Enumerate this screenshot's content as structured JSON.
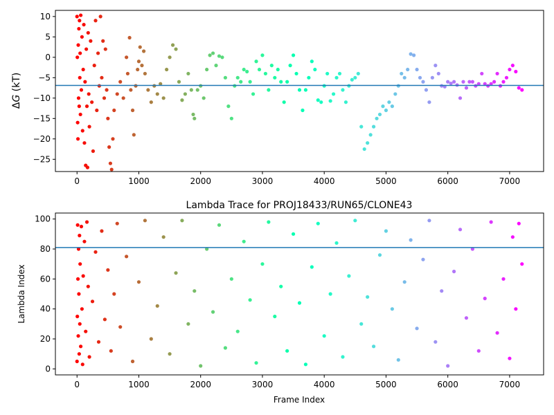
{
  "chart_data": [
    {
      "type": "scatter",
      "title": "",
      "xlabel": "",
      "ylabel_prefix": "Δ",
      "ylabel_symbol": "G",
      "ylabel_suffix": " (kT)",
      "xlim": [
        -350,
        7550
      ],
      "ylim": [
        -28,
        11.5
      ],
      "xticks": [
        0,
        1000,
        2000,
        3000,
        4000,
        5000,
        6000,
        7000
      ],
      "yticks": [
        10,
        5,
        0,
        -5,
        -10,
        -15,
        -20,
        -25
      ],
      "xtick_labels": [
        "0",
        "1000",
        "2000",
        "3000",
        "4000",
        "5000",
        "6000",
        "7000"
      ],
      "ytick_labels": [
        "10",
        "5",
        "0",
        "−5",
        "−10",
        "−15",
        "−20",
        "−25"
      ],
      "hline": {
        "y": -6.9,
        "color": "#1f77b4"
      },
      "colormap": "rainbow",
      "n_frames": 7200,
      "grid": false,
      "points": [
        [
          0,
          10
        ],
        [
          5,
          0
        ],
        [
          10,
          -16
        ],
        [
          15,
          -20
        ],
        [
          20,
          3
        ],
        [
          25,
          -10
        ],
        [
          30,
          7
        ],
        [
          35,
          -12
        ],
        [
          40,
          9
        ],
        [
          45,
          -5
        ],
        [
          50,
          1
        ],
        [
          55,
          -14
        ],
        [
          60,
          10.3
        ],
        [
          70,
          -8
        ],
        [
          80,
          5
        ],
        [
          90,
          -18
        ],
        [
          100,
          -3
        ],
        [
          110,
          8
        ],
        [
          120,
          -21
        ],
        [
          130,
          -6
        ],
        [
          140,
          -26.5
        ],
        [
          150,
          2
        ],
        [
          160,
          -12
        ],
        [
          170,
          -27
        ],
        [
          180,
          6
        ],
        [
          190,
          -9
        ],
        [
          200,
          -17
        ],
        [
          220,
          4
        ],
        [
          240,
          -11
        ],
        [
          260,
          -23
        ],
        [
          280,
          -2
        ],
        [
          300,
          9
        ],
        [
          320,
          -13
        ],
        [
          340,
          1
        ],
        [
          360,
          -7
        ],
        [
          380,
          10
        ],
        [
          400,
          -5
        ],
        [
          420,
          4
        ],
        [
          440,
          -10
        ],
        [
          460,
          2
        ],
        [
          480,
          -8
        ],
        [
          500,
          -15
        ],
        [
          520,
          -22
        ],
        [
          540,
          -26
        ],
        [
          560,
          -27.5
        ],
        [
          580,
          -20
        ],
        [
          600,
          -13
        ],
        [
          650,
          -9
        ],
        [
          700,
          -6
        ],
        [
          750,
          -10
        ],
        [
          800,
          0
        ],
        [
          820,
          -4
        ],
        [
          850,
          4.8
        ],
        [
          870,
          -8
        ],
        [
          900,
          -13
        ],
        [
          920,
          -19
        ],
        [
          950,
          -7
        ],
        [
          980,
          -3
        ],
        [
          1000,
          -1
        ],
        [
          1020,
          2.5
        ],
        [
          1050,
          -2
        ],
        [
          1080,
          1.5
        ],
        [
          1100,
          -4
        ],
        [
          1150,
          -8
        ],
        [
          1200,
          -11
        ],
        [
          1250,
          -7
        ],
        [
          1300,
          -9
        ],
        [
          1350,
          -6.5
        ],
        [
          1400,
          -10
        ],
        [
          1450,
          -3
        ],
        [
          1500,
          0
        ],
        [
          1550,
          3
        ],
        [
          1600,
          2
        ],
        [
          1650,
          -6
        ],
        [
          1700,
          -10.5
        ],
        [
          1750,
          -9
        ],
        [
          1800,
          -4
        ],
        [
          1850,
          -8
        ],
        [
          1880,
          -14
        ],
        [
          1900,
          -15
        ],
        [
          1950,
          -8
        ],
        [
          2000,
          -7
        ],
        [
          2050,
          -10
        ],
        [
          2100,
          -3
        ],
        [
          2150,
          0.5
        ],
        [
          2200,
          1
        ],
        [
          2250,
          -2
        ],
        [
          2300,
          0.3
        ],
        [
          2350,
          0
        ],
        [
          2400,
          -5
        ],
        [
          2450,
          -12
        ],
        [
          2500,
          -15
        ],
        [
          2550,
          -7
        ],
        [
          2600,
          -5
        ],
        [
          2650,
          -6
        ],
        [
          2700,
          -3
        ],
        [
          2750,
          -3.5
        ],
        [
          2800,
          -6
        ],
        [
          2850,
          -9
        ],
        [
          2900,
          -1
        ],
        [
          2950,
          -3
        ],
        [
          3000,
          0.5
        ],
        [
          3050,
          -4
        ],
        [
          3100,
          -8
        ],
        [
          3150,
          -2
        ],
        [
          3200,
          -5
        ],
        [
          3250,
          -3
        ],
        [
          3300,
          -6
        ],
        [
          3350,
          -11
        ],
        [
          3400,
          -6
        ],
        [
          3450,
          -2
        ],
        [
          3500,
          0.5
        ],
        [
          3550,
          -4
        ],
        [
          3600,
          -8
        ],
        [
          3650,
          -13
        ],
        [
          3700,
          -8
        ],
        [
          3750,
          -5
        ],
        [
          3800,
          -1
        ],
        [
          3850,
          -3
        ],
        [
          3900,
          -10.5
        ],
        [
          3950,
          -11
        ],
        [
          4000,
          -7
        ],
        [
          4050,
          -4
        ],
        [
          4100,
          -10.7
        ],
        [
          4150,
          -9
        ],
        [
          4200,
          -5
        ],
        [
          4250,
          -4
        ],
        [
          4300,
          -8
        ],
        [
          4350,
          -11
        ],
        [
          4400,
          -7
        ],
        [
          4450,
          -5.5
        ],
        [
          4500,
          -5
        ],
        [
          4550,
          -4
        ],
        [
          4600,
          -17
        ],
        [
          4650,
          -22.5
        ],
        [
          4700,
          -21
        ],
        [
          4750,
          -19
        ],
        [
          4800,
          -17
        ],
        [
          4850,
          -15
        ],
        [
          4900,
          -14
        ],
        [
          4950,
          -12
        ],
        [
          5000,
          -13
        ],
        [
          5050,
          -11
        ],
        [
          5100,
          -12
        ],
        [
          5150,
          -9
        ],
        [
          5200,
          -7
        ],
        [
          5250,
          -4
        ],
        [
          5300,
          -5
        ],
        [
          5350,
          -3
        ],
        [
          5400,
          0.8
        ],
        [
          5450,
          0.5
        ],
        [
          5500,
          -3
        ],
        [
          5550,
          -5
        ],
        [
          5600,
          -6
        ],
        [
          5650,
          -8
        ],
        [
          5700,
          -11
        ],
        [
          5750,
          -5
        ],
        [
          5800,
          -2
        ],
        [
          5850,
          -4
        ],
        [
          5900,
          -7
        ],
        [
          5950,
          -7.2
        ],
        [
          6000,
          -6
        ],
        [
          6050,
          -6.4
        ],
        [
          6100,
          -6
        ],
        [
          6150,
          -6.8
        ],
        [
          6200,
          -10
        ],
        [
          6250,
          -6
        ],
        [
          6300,
          -7.5
        ],
        [
          6350,
          -6
        ],
        [
          6400,
          -6
        ],
        [
          6450,
          -7
        ],
        [
          6500,
          -6.5
        ],
        [
          6550,
          -4
        ],
        [
          6600,
          -6.5
        ],
        [
          6650,
          -7
        ],
        [
          6700,
          -6.5
        ],
        [
          6750,
          -6
        ],
        [
          6800,
          -4
        ],
        [
          6850,
          -7
        ],
        [
          6900,
          -6
        ],
        [
          6950,
          -5
        ],
        [
          7000,
          -3
        ],
        [
          7050,
          -2
        ],
        [
          7100,
          -3.5
        ],
        [
          7150,
          -7.5
        ],
        [
          7200,
          -8
        ]
      ]
    },
    {
      "type": "scatter",
      "title": "Lambda Trace for PROJ18433/RUN65/CLONE43",
      "xlabel": "Frame Index",
      "ylabel": "Lambda Index",
      "xlim": [
        -350,
        7550
      ],
      "ylim": [
        -4,
        104
      ],
      "xticks": [
        0,
        1000,
        2000,
        3000,
        4000,
        5000,
        6000,
        7000
      ],
      "yticks": [
        0,
        20,
        40,
        60,
        80,
        100
      ],
      "xtick_labels": [
        "0",
        "1000",
        "2000",
        "3000",
        "4000",
        "5000",
        "6000",
        "7000"
      ],
      "ytick_labels": [
        "0",
        "20",
        "40",
        "60",
        "80",
        "100"
      ],
      "hline": {
        "y": 81,
        "color": "#1f77b4"
      },
      "colormap": "rainbow",
      "n_frames": 7200,
      "grid": false,
      "points": [
        [
          0,
          5
        ],
        [
          5,
          35
        ],
        [
          10,
          96
        ],
        [
          15,
          60
        ],
        [
          20,
          22
        ],
        [
          25,
          80
        ],
        [
          30,
          50
        ],
        [
          35,
          10
        ],
        [
          40,
          89
        ],
        [
          45,
          30
        ],
        [
          50,
          70
        ],
        [
          60,
          15
        ],
        [
          70,
          95
        ],
        [
          80,
          40
        ],
        [
          90,
          3
        ],
        [
          100,
          62
        ],
        [
          120,
          85
        ],
        [
          140,
          25
        ],
        [
          160,
          98
        ],
        [
          180,
          55
        ],
        [
          200,
          8
        ],
        [
          250,
          45
        ],
        [
          300,
          78
        ],
        [
          350,
          18
        ],
        [
          400,
          92
        ],
        [
          450,
          33
        ],
        [
          500,
          66
        ],
        [
          550,
          12
        ],
        [
          600,
          50
        ],
        [
          650,
          97
        ],
        [
          700,
          28
        ],
        [
          800,
          75
        ],
        [
          900,
          5
        ],
        [
          1000,
          58
        ],
        [
          1100,
          99
        ],
        [
          1200,
          20
        ],
        [
          1300,
          42
        ],
        [
          1400,
          88
        ],
        [
          1500,
          10
        ],
        [
          1600,
          64
        ],
        [
          1700,
          99
        ],
        [
          1800,
          30
        ],
        [
          1900,
          52
        ],
        [
          2000,
          2
        ],
        [
          2100,
          80
        ],
        [
          2200,
          38
        ],
        [
          2300,
          96
        ],
        [
          2400,
          14
        ],
        [
          2500,
          60
        ],
        [
          2600,
          25
        ],
        [
          2700,
          85
        ],
        [
          2800,
          46
        ],
        [
          2900,
          4
        ],
        [
          3000,
          70
        ],
        [
          3100,
          98
        ],
        [
          3200,
          35
        ],
        [
          3300,
          55
        ],
        [
          3400,
          12
        ],
        [
          3500,
          90
        ],
        [
          3600,
          44
        ],
        [
          3700,
          3
        ],
        [
          3800,
          68
        ],
        [
          3900,
          97
        ],
        [
          4000,
          22
        ],
        [
          4100,
          50
        ],
        [
          4200,
          84
        ],
        [
          4300,
          8
        ],
        [
          4400,
          62
        ],
        [
          4500,
          99
        ],
        [
          4600,
          30
        ],
        [
          4700,
          48
        ],
        [
          4800,
          15
        ],
        [
          4900,
          76
        ],
        [
          5000,
          92
        ],
        [
          5100,
          40
        ],
        [
          5200,
          6
        ],
        [
          5300,
          58
        ],
        [
          5400,
          86
        ],
        [
          5500,
          27
        ],
        [
          5600,
          73
        ],
        [
          5700,
          99
        ],
        [
          5800,
          18
        ],
        [
          5900,
          52
        ],
        [
          6000,
          2
        ],
        [
          6100,
          65
        ],
        [
          6200,
          93
        ],
        [
          6300,
          34
        ],
        [
          6400,
          80
        ],
        [
          6500,
          12
        ],
        [
          6600,
          47
        ],
        [
          6700,
          98
        ],
        [
          6800,
          24
        ],
        [
          6900,
          60
        ],
        [
          7000,
          7
        ],
        [
          7050,
          88
        ],
        [
          7100,
          40
        ],
        [
          7150,
          97
        ],
        [
          7200,
          70
        ]
      ]
    }
  ]
}
